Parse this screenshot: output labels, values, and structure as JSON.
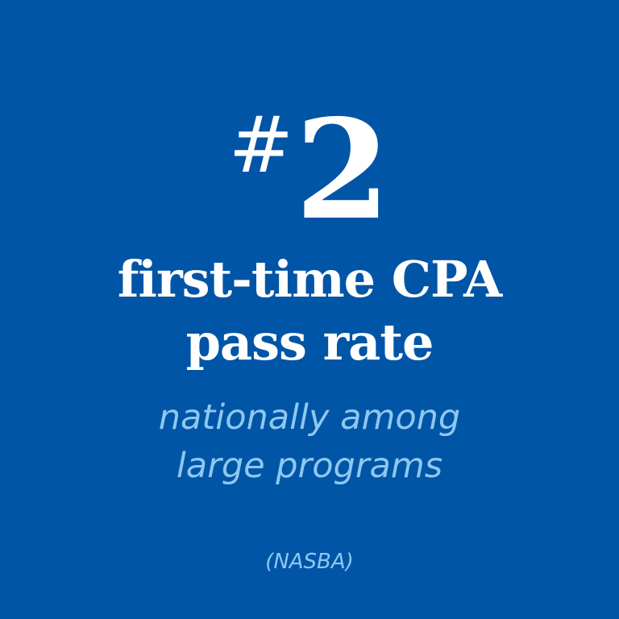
{
  "graphic": {
    "background_color": "#0055a6",
    "primary_text_color": "#ffffff",
    "secondary_text_color": "#8ec8f0",
    "rank": {
      "hash_symbol": "#",
      "number": "2"
    },
    "headline": {
      "line1": "first-time CPA",
      "line2": "pass rate"
    },
    "subheadline": {
      "line1": "nationally among",
      "line2": "large programs"
    },
    "source": "(NASBA)"
  }
}
